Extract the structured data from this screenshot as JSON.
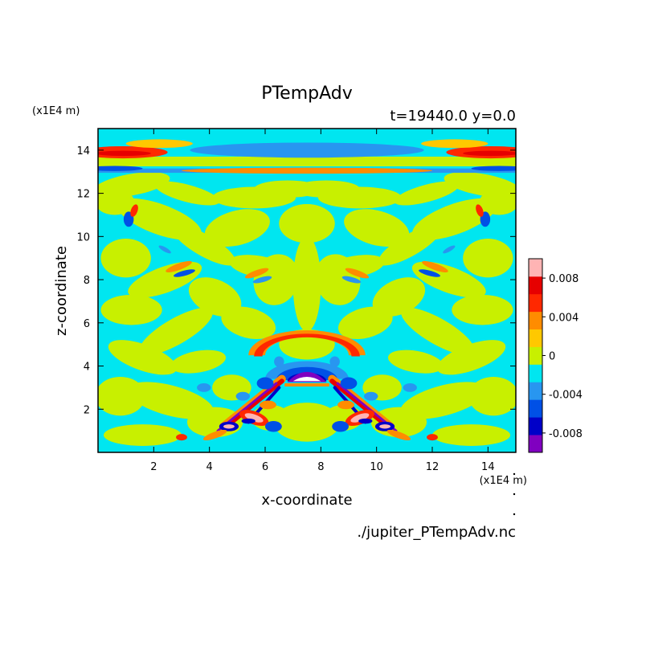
{
  "chart_data": {
    "type": "heatmap",
    "title": "PTempAdv",
    "subtitle": "t=19440.0 y=0.0",
    "xlabel": "x-coordinate",
    "ylabel": "z-coordinate",
    "x_unit": "(x1E4 m)",
    "y_unit": "(x1E4 m)",
    "footer": "./jupiter_PTempAdv.nc",
    "xlim": [
      0,
      15
    ],
    "ylim": [
      0,
      15
    ],
    "xticks": [
      "2",
      "4",
      "6",
      "8",
      "10",
      "12",
      "14"
    ],
    "yticks": [
      "2",
      "4",
      "6",
      "8",
      "10",
      "12",
      "14"
    ],
    "colorbar": {
      "levels": [
        -0.01,
        -0.008,
        -0.006,
        -0.004,
        -0.002,
        0,
        0.002,
        0.004,
        0.006,
        0.008,
        0.01
      ],
      "colors": [
        "#8000c0",
        "#0000c8",
        "#0050e6",
        "#2896f0",
        "#00e6f0",
        "#c8f000",
        "#ffc800",
        "#ff8c00",
        "#ff2800",
        "#e60000",
        "#ffb4b4"
      ],
      "tick_labels": [
        "0.008",
        "0.004",
        "0",
        "-0.004",
        "-0.008"
      ],
      "tick_values": [
        0.008,
        0.004,
        0,
        -0.004,
        -0.008
      ]
    }
  }
}
